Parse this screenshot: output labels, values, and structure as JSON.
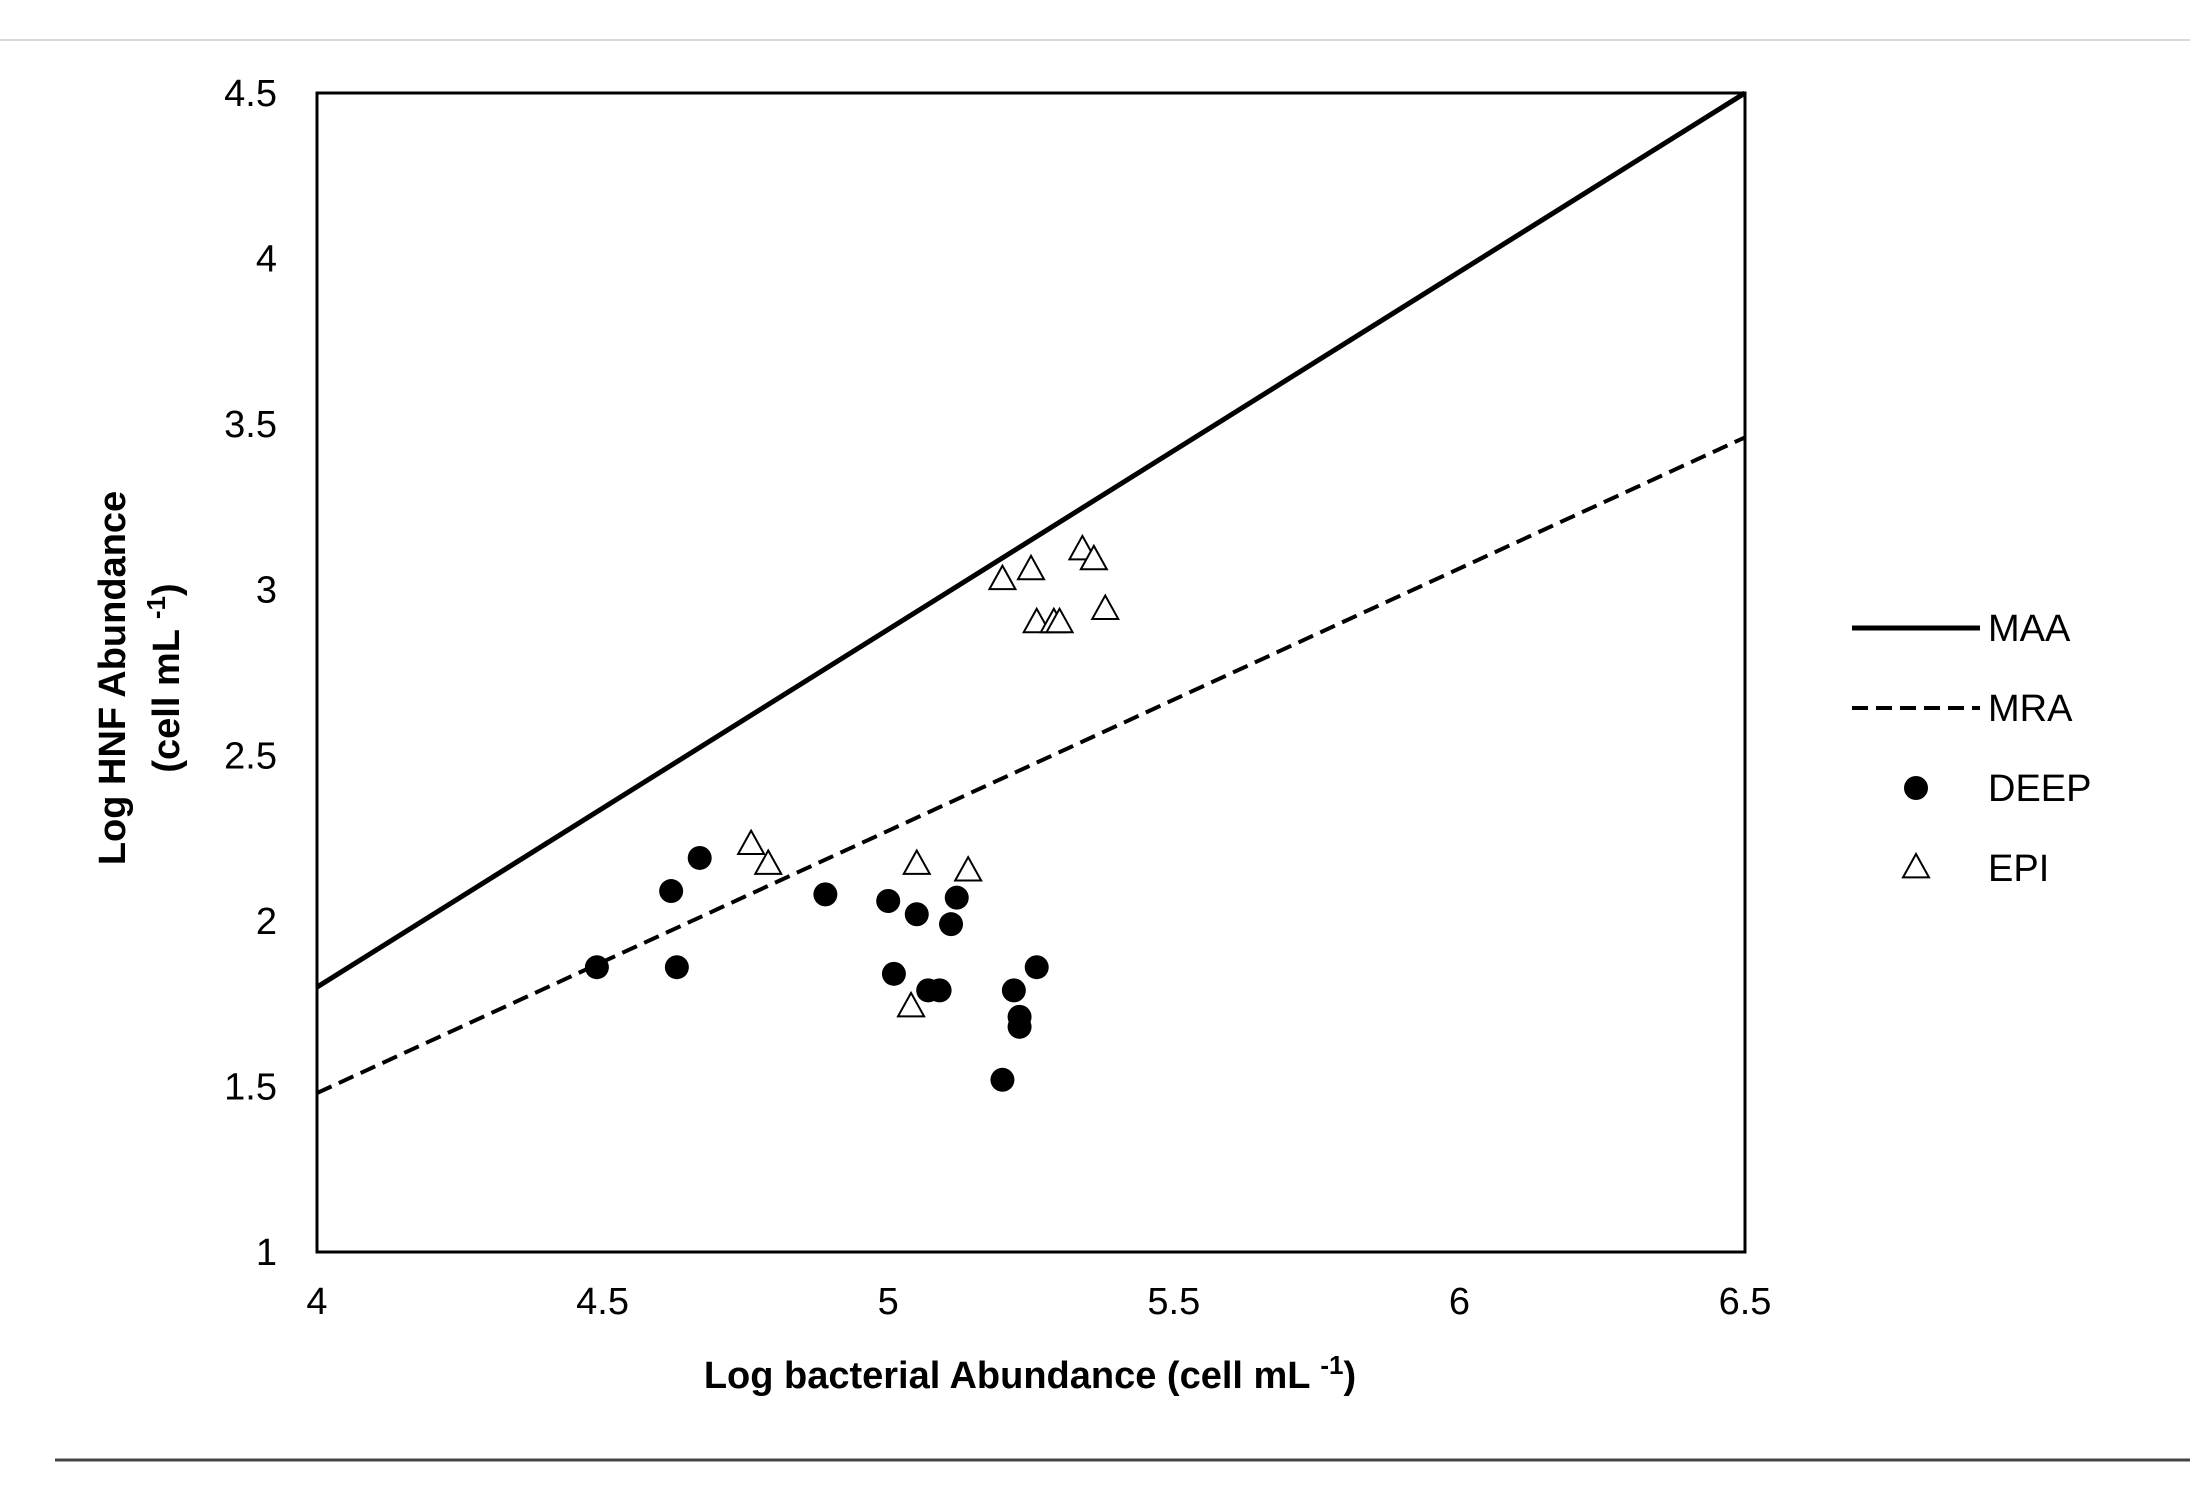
{
  "chart_data": {
    "type": "scatter",
    "xlabel": {
      "main": "Log bacterial Abundance (cell mL ",
      "sup": "-1",
      "tail": ")"
    },
    "ylabel": {
      "line1": "Log HNF Abundance",
      "line2_main": "(cell mL ",
      "line2_sup": "-1",
      "line2_tail": ")"
    },
    "xlim": [
      4,
      6.5
    ],
    "ylim": [
      1,
      4.5
    ],
    "x_ticks": [
      "4",
      "4.5",
      "5",
      "5.5",
      "6",
      "6.5"
    ],
    "y_ticks": [
      "1",
      "1.5",
      "2",
      "2.5",
      "3",
      "3.5",
      "4",
      "4.5"
    ],
    "grid": false,
    "legend_position": "right",
    "lines": [
      {
        "name": "MAA",
        "style": "solid",
        "color": "#000000",
        "points": [
          [
            4,
            1.8
          ],
          [
            6.5,
            4.5
          ]
        ]
      },
      {
        "name": "MRA",
        "style": "dashed",
        "color": "#000000",
        "points": [
          [
            4,
            1.48
          ],
          [
            6.5,
            3.46
          ]
        ]
      }
    ],
    "series": [
      {
        "name": "DEEP",
        "marker": "filled-circle",
        "color": "#000000",
        "points": [
          [
            4.49,
            1.86
          ],
          [
            4.62,
            2.09
          ],
          [
            4.63,
            1.86
          ],
          [
            4.67,
            2.19
          ],
          [
            4.89,
            2.08
          ],
          [
            5.0,
            2.06
          ],
          [
            5.01,
            1.84
          ],
          [
            5.05,
            2.02
          ],
          [
            5.07,
            1.79
          ],
          [
            5.09,
            1.79
          ],
          [
            5.11,
            1.99
          ],
          [
            5.12,
            2.07
          ],
          [
            5.2,
            1.52
          ],
          [
            5.22,
            1.79
          ],
          [
            5.23,
            1.71
          ],
          [
            5.23,
            1.68
          ],
          [
            5.26,
            1.86
          ]
        ]
      },
      {
        "name": "EPI",
        "marker": "open-triangle",
        "color": "#000000",
        "points": [
          [
            4.76,
            2.23
          ],
          [
            4.79,
            2.17
          ],
          [
            5.04,
            1.74
          ],
          [
            5.05,
            2.17
          ],
          [
            5.14,
            2.15
          ],
          [
            5.2,
            3.03
          ],
          [
            5.25,
            3.06
          ],
          [
            5.26,
            2.9
          ],
          [
            5.29,
            2.9
          ],
          [
            5.3,
            2.9
          ],
          [
            5.34,
            3.12
          ],
          [
            5.36,
            3.09
          ],
          [
            5.38,
            2.94
          ]
        ]
      }
    ]
  }
}
